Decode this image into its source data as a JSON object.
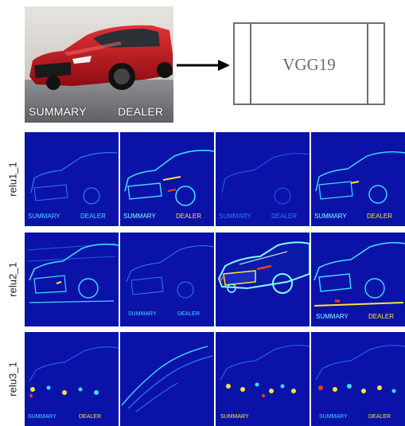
{
  "input_image": {
    "caption_left": "SUMMARY",
    "caption_right": "DEALER"
  },
  "model": {
    "label": "VGG19"
  },
  "layers": [
    {
      "name": "relu1_1"
    },
    {
      "name": "relu2_1"
    },
    {
      "name": "relu3_1"
    }
  ],
  "colors": {
    "map_background": "#0a12a8",
    "edge_cyan": "#3fd9ff",
    "hot_yellow": "#ffe23a",
    "hot_red": "#ff3a1a",
    "car_red": "#c8161e",
    "box_stroke": "#6e6e6e"
  }
}
